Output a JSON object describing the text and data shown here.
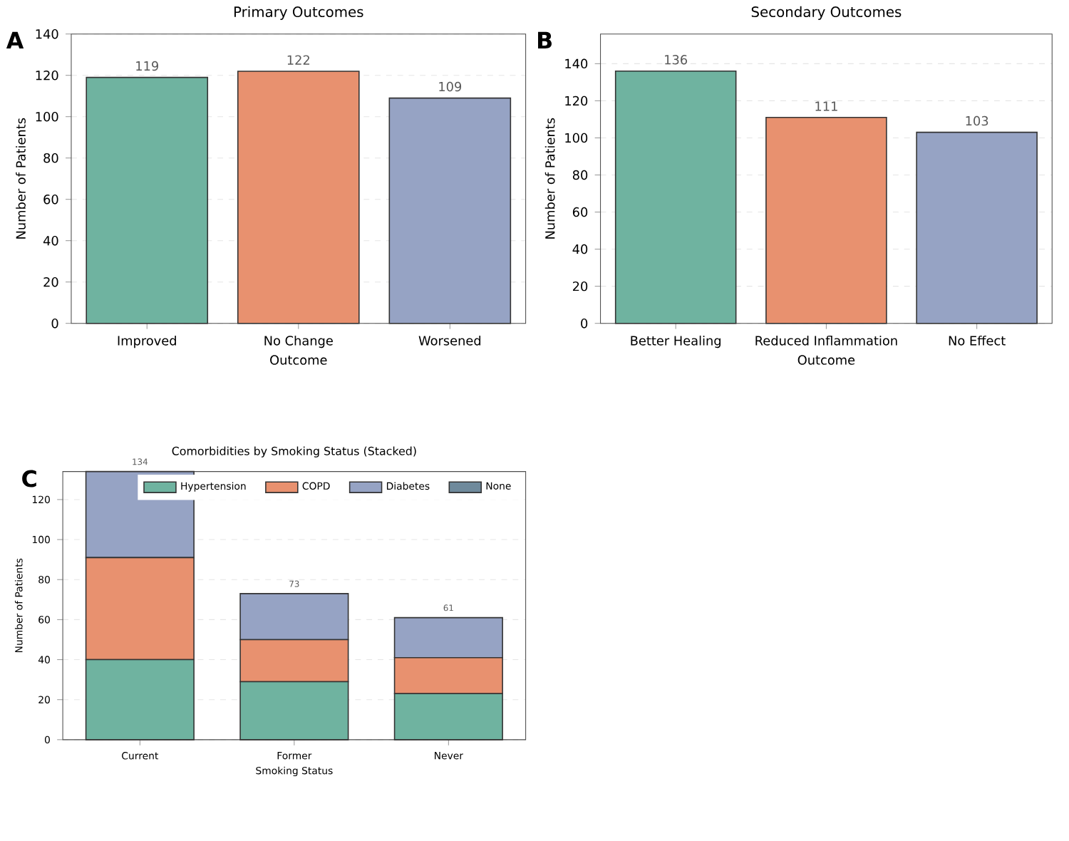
{
  "chart_data": [
    {
      "type": "bar",
      "title": "Primary Outcomes",
      "xlabel": "Outcome",
      "ylabel": "Number of Patients",
      "categories": [
        "Improved",
        "No Change",
        "Worsened"
      ],
      "values": [
        119,
        122,
        109
      ],
      "colors": [
        "#6fb3a0",
        "#e8916f",
        "#96a3c4"
      ],
      "ylim": [
        0,
        140
      ],
      "yticks": [
        0,
        20,
        40,
        60,
        80,
        100,
        120,
        140
      ],
      "grid": "y",
      "data_labels": true,
      "annotations": [
        "A"
      ]
    },
    {
      "type": "bar",
      "title": "Secondary Outcomes",
      "xlabel": "Outcome",
      "ylabel": "Number of Patients",
      "categories": [
        "Better Healing",
        "Reduced Inflammation",
        "No Effect"
      ],
      "values": [
        136,
        111,
        103
      ],
      "colors": [
        "#6fb3a0",
        "#e8916f",
        "#96a3c4"
      ],
      "ylim": [
        0,
        156
      ],
      "yticks": [
        0,
        20,
        40,
        60,
        80,
        100,
        120,
        140
      ],
      "grid": "y",
      "data_labels": true,
      "annotations": [
        "B"
      ]
    },
    {
      "type": "bar",
      "title": "Comorbidities by Smoking Status (Stacked)",
      "xlabel": "Smoking Status",
      "ylabel": "Number of Patients",
      "categories": [
        "Current",
        "Former",
        "Never"
      ],
      "stacked": true,
      "series": [
        {
          "name": "Hypertension",
          "color": "#6fb3a0",
          "values": [
            40,
            29,
            23
          ]
        },
        {
          "name": "COPD",
          "color": "#e8916f",
          "values": [
            51,
            21,
            18
          ]
        },
        {
          "name": "Diabetes",
          "color": "#96a3c4",
          "values": [
            43,
            23,
            20
          ]
        },
        {
          "name": "None",
          "color": "#6f8a9c",
          "values": [
            0,
            0,
            0
          ]
        }
      ],
      "totals": [
        "134",
        "73",
        "61"
      ],
      "ylim": [
        0,
        134
      ],
      "yticks": [
        0,
        20,
        40,
        60,
        80,
        100,
        120
      ],
      "grid": "y",
      "legend": "top right",
      "annotations": [
        "C"
      ]
    }
  ]
}
